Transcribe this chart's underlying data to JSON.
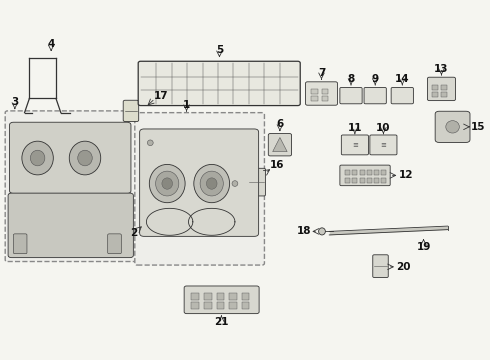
{
  "bg_color": "#f5f5f0",
  "dgray": "#333333",
  "gray": "#555555",
  "lgray": "#999999",
  "box_fill": "#efefea",
  "part_fill": "#e0e0d8",
  "dark_fill": "#d8d8d0",
  "darker_fill": "#c8c8c0"
}
